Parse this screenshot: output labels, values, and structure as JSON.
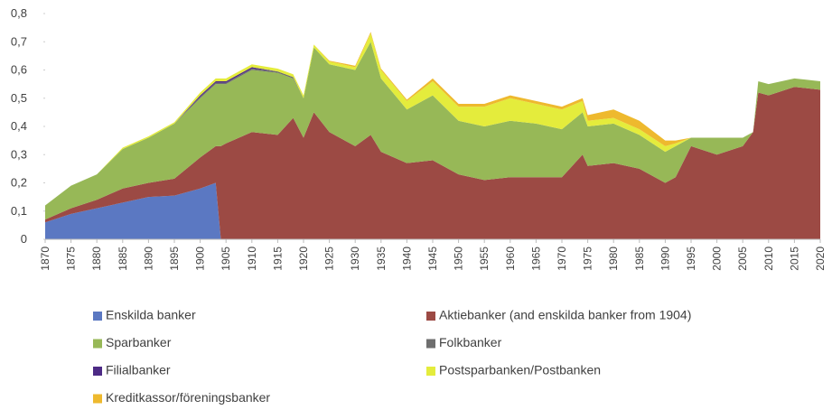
{
  "chart_data": {
    "type": "stacked_area",
    "x": [
      1870,
      1875,
      1880,
      1885,
      1890,
      1895,
      1900,
      1903,
      1904,
      1905,
      1910,
      1915,
      1918,
      1920,
      1922,
      1925,
      1930,
      1933,
      1935,
      1940,
      1945,
      1950,
      1955,
      1960,
      1965,
      1970,
      1974,
      1975,
      1980,
      1985,
      1990,
      1992,
      1995,
      2000,
      2005,
      2007,
      2008,
      2010,
      2015,
      2020
    ],
    "xlim": [
      1870,
      2020
    ],
    "xticks": [
      1870,
      1875,
      1880,
      1885,
      1890,
      1895,
      1900,
      1905,
      1910,
      1915,
      1920,
      1925,
      1930,
      1935,
      1940,
      1945,
      1950,
      1955,
      1960,
      1965,
      1970,
      1975,
      1980,
      1985,
      1990,
      1995,
      2000,
      2005,
      2010,
      2015,
      2020
    ],
    "ylim": [
      0,
      0.8
    ],
    "yticks": [
      0,
      {
        "value": 0.1,
        "label": "0,1"
      },
      {
        "value": 0.2,
        "label": "0,2"
      },
      {
        "value": 0.3,
        "label": "0,3"
      },
      {
        "value": 0.4,
        "label": "0,4"
      },
      {
        "value": 0.5,
        "label": "0,5"
      },
      {
        "value": 0.6,
        "label": "0,6"
      },
      {
        "value": 0.7,
        "label": "0,7"
      },
      {
        "value": 0.8,
        "label": "0,8"
      }
    ],
    "series": [
      {
        "name": "Enskilda banker",
        "color": "#5b78c2",
        "values": [
          0.06,
          0.09,
          0.11,
          0.13,
          0.15,
          0.155,
          0.18,
          0.2,
          0,
          0,
          0,
          0,
          0,
          0,
          0,
          0,
          0,
          0,
          0,
          0,
          0,
          0,
          0,
          0,
          0,
          0,
          0,
          0,
          0,
          0,
          0,
          0,
          0,
          0,
          0,
          0,
          0,
          0,
          0,
          0
        ]
      },
      {
        "name": "Aktiebanker (and enskilda banker from 1904)",
        "color": "#9c4a44",
        "values": [
          0.01,
          0.02,
          0.03,
          0.05,
          0.05,
          0.06,
          0.11,
          0.13,
          0.33,
          0.34,
          0.38,
          0.37,
          0.43,
          0.36,
          0.45,
          0.38,
          0.33,
          0.37,
          0.31,
          0.27,
          0.28,
          0.23,
          0.21,
          0.22,
          0.22,
          0.22,
          0.3,
          0.26,
          0.27,
          0.25,
          0.2,
          0.22,
          0.33,
          0.3,
          0.33,
          0.38,
          0.52,
          0.51,
          0.54,
          0.53
        ]
      },
      {
        "name": "Sparbanker",
        "color": "#97b857",
        "values": [
          0.05,
          0.08,
          0.09,
          0.14,
          0.16,
          0.195,
          0.21,
          0.22,
          0.22,
          0.21,
          0.22,
          0.22,
          0.14,
          0.14,
          0.23,
          0.24,
          0.27,
          0.33,
          0.26,
          0.19,
          0.23,
          0.19,
          0.19,
          0.2,
          0.19,
          0.17,
          0.15,
          0.14,
          0.14,
          0.12,
          0.11,
          0.11,
          0.03,
          0.06,
          0.03,
          0,
          0.04,
          0.04,
          0.03,
          0.03
        ]
      },
      {
        "name": "Folkbanker",
        "color": "#6e6e6e",
        "values": [
          0,
          0,
          0,
          0,
          0,
          0,
          0.005,
          0.005,
          0.005,
          0.005,
          0.005,
          0.005,
          0.005,
          0,
          0,
          0,
          0,
          0,
          0,
          0,
          0,
          0,
          0,
          0,
          0,
          0,
          0,
          0,
          0,
          0,
          0,
          0,
          0,
          0,
          0,
          0,
          0,
          0,
          0,
          0
        ]
      },
      {
        "name": "Filialbanker",
        "color": "#4d2a85",
        "values": [
          0,
          0,
          0,
          0,
          0,
          0,
          0.005,
          0.005,
          0.005,
          0.005,
          0.005,
          0,
          0,
          0,
          0,
          0,
          0,
          0,
          0,
          0,
          0,
          0,
          0,
          0,
          0,
          0,
          0,
          0,
          0,
          0,
          0,
          0,
          0,
          0,
          0,
          0,
          0,
          0,
          0,
          0
        ]
      },
      {
        "name": "Postsparbanken/Postbanken",
        "color": "#e4ec3c",
        "values": [
          0,
          0,
          0,
          0.005,
          0.005,
          0.005,
          0.01,
          0.01,
          0.01,
          0.01,
          0.01,
          0.01,
          0.01,
          0.01,
          0.01,
          0.01,
          0.01,
          0.03,
          0.03,
          0.03,
          0.05,
          0.05,
          0.07,
          0.08,
          0.07,
          0.07,
          0.04,
          0.02,
          0.02,
          0.02,
          0.02,
          0.01,
          0,
          0,
          0,
          0,
          0,
          0,
          0,
          0
        ]
      },
      {
        "name": "Kreditkassor/föreningsbanker",
        "color": "#eeb92e",
        "values": [
          0,
          0,
          0,
          0,
          0,
          0,
          0,
          0,
          0,
          0,
          0,
          0,
          0,
          0,
          0,
          0.003,
          0.005,
          0.005,
          0.005,
          0.005,
          0.01,
          0.01,
          0.01,
          0.01,
          0.01,
          0.01,
          0.01,
          0.02,
          0.03,
          0.03,
          0.02,
          0.01,
          0,
          0,
          0,
          0,
          0,
          0,
          0,
          0
        ]
      }
    ]
  }
}
